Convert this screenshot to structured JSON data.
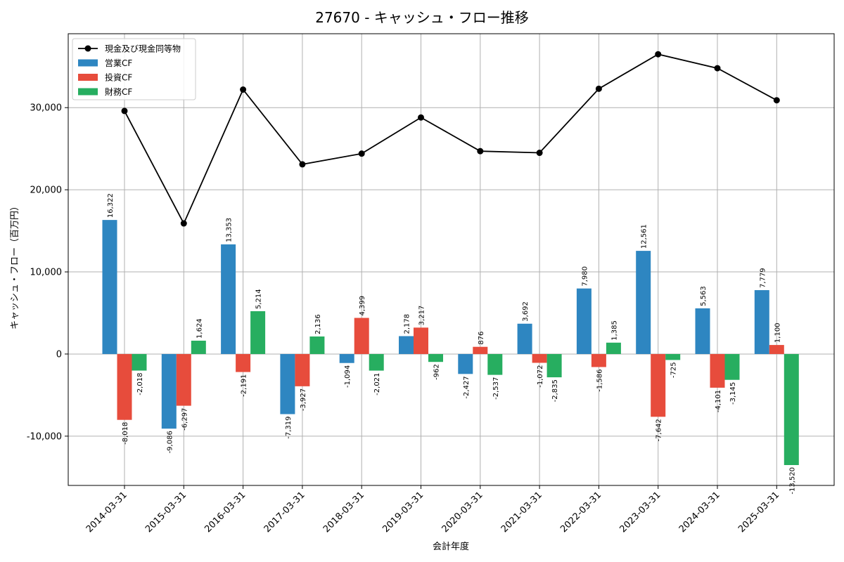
{
  "chart_data": {
    "type": "bar",
    "title": "27670 - キャッシュ・フロー推移",
    "xlabel": "会計年度",
    "ylabel": "キャッシュ・フロー（百万円）",
    "ylim": [
      -16000,
      39000
    ],
    "yticks": [
      -10000,
      0,
      10000,
      20000,
      30000
    ],
    "ytick_labels": [
      "-10,000",
      "0",
      "10,000",
      "20,000",
      "30,000"
    ],
    "grid": true,
    "legend_position": "top-left",
    "categories": [
      "2014-03-31",
      "2015-03-31",
      "2016-03-31",
      "2017-03-31",
      "2018-03-31",
      "2019-03-31",
      "2020-03-31",
      "2021-03-31",
      "2022-03-31",
      "2023-03-31",
      "2024-03-31",
      "2025-03-31"
    ],
    "series": [
      {
        "name": "営業CF",
        "kind": "bar",
        "color": "#2e86c1",
        "values": [
          16322,
          -9086,
          13353,
          -7319,
          -1094,
          2178,
          -2427,
          3692,
          7980,
          12561,
          5563,
          7779
        ],
        "labels": [
          "16,322",
          "-9,086",
          "13,353",
          "-7,319",
          "-1,094",
          "2,178",
          "-2,427",
          "3,692",
          "7,980",
          "12,561",
          "5,563",
          "7,779"
        ]
      },
      {
        "name": "投資CF",
        "kind": "bar",
        "color": "#e74c3c",
        "values": [
          -8018,
          -6297,
          -2191,
          -3927,
          4399,
          3217,
          876,
          -1072,
          -1586,
          -7642,
          -4101,
          1100
        ],
        "labels": [
          "-8,018",
          "-6,297",
          "-2,191",
          "-3,927",
          "4,399",
          "3,217",
          "876",
          "-1,072",
          "-1,586",
          "-7,642",
          "-4,101",
          "1,100"
        ]
      },
      {
        "name": "財務CF",
        "kind": "bar",
        "color": "#27ae60",
        "values": [
          -2018,
          1624,
          5214,
          2136,
          -2021,
          -962,
          -2537,
          -2835,
          1385,
          -725,
          -3145,
          -13520
        ],
        "labels": [
          "-2,018",
          "1,624",
          "5,214",
          "2,136",
          "-2,021",
          "-962",
          "-2,537",
          "-2,835",
          "1,385",
          "-725",
          "-3,145",
          "-13,520"
        ]
      },
      {
        "name": "現金及び現金同等物",
        "kind": "line",
        "color": "#000000",
        "values": [
          29600,
          15900,
          32200,
          23100,
          24400,
          28800,
          24700,
          24500,
          32300,
          36500,
          34800,
          30900
        ]
      }
    ]
  }
}
